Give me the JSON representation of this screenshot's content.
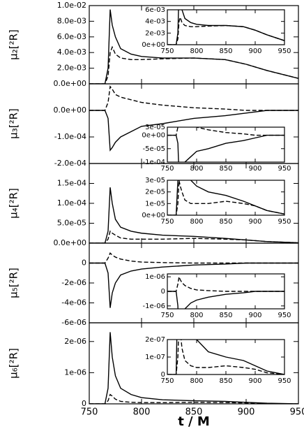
{
  "chart_data": [
    {
      "type": "line",
      "y_label": "μ₂[²R]",
      "x": [
        750,
        765,
        768,
        770,
        772,
        775,
        780,
        790,
        800,
        820,
        850,
        880,
        900,
        920,
        950
      ],
      "xlim": [
        750,
        950
      ],
      "xticks": [
        750,
        800,
        850,
        900,
        950
      ],
      "ylim": [
        0,
        0.01
      ],
      "yticks": [
        {
          "value": 0,
          "label": "0.0e+00"
        },
        {
          "value": 0.002,
          "label": "2.0e-03"
        },
        {
          "value": 0.004,
          "label": "4.0e-03"
        },
        {
          "value": 0.006,
          "label": "6.0e-03"
        },
        {
          "value": 0.008,
          "label": "8.0e-03"
        },
        {
          "value": 0.01,
          "label": "1.0e-02"
        }
      ],
      "series": [
        {
          "color": "#000000",
          "dashed": false,
          "values": [
            0,
            0,
            0.002,
            0.0095,
            0.0075,
            0.006,
            0.0045,
            0.0038,
            0.0035,
            0.0033,
            0.0033,
            0.0031,
            0.0025,
            0.0017,
            0.0007
          ]
        },
        {
          "color": "#000000",
          "dashed": true,
          "values": [
            0,
            0,
            0.001,
            0.004,
            0.0047,
            0.0038,
            0.0033,
            0.0031,
            0.0031,
            0.0032,
            0.0033,
            0.0031,
            0.0025,
            0.0017,
            0.0007
          ]
        }
      ],
      "inset": {
        "xlim": [
          750,
          950
        ],
        "xticks": [
          750,
          800,
          850,
          900,
          950
        ],
        "ylim": [
          0,
          0.006
        ],
        "yticks": [
          {
            "value": 0,
            "label": "0e+00"
          },
          {
            "value": 0.002,
            "label": "2e-03"
          },
          {
            "value": 0.004,
            "label": "4e-03"
          },
          {
            "value": 0.006,
            "label": "6e-03"
          }
        ]
      }
    },
    {
      "type": "line",
      "y_label": "μ₃[²R]",
      "x": [
        750,
        765,
        768,
        770,
        772,
        775,
        780,
        790,
        800,
        820,
        850,
        880,
        900,
        920,
        950
      ],
      "xlim": [
        750,
        950
      ],
      "xticks": [
        750,
        800,
        850,
        900,
        950
      ],
      "ylim": [
        -0.0002,
        0.0001
      ],
      "yticks": [
        {
          "value": -0.0002,
          "label": "-2.0e-04"
        },
        {
          "value": -0.0001,
          "label": "-1.0e-04"
        },
        {
          "value": 0,
          "label": "0.0e+00"
        }
      ],
      "series": [
        {
          "color": "#000000",
          "dashed": false,
          "values": [
            0,
            0,
            -3e-05,
            -0.00015,
            -0.00014,
            -0.00012,
            -0.0001,
            -8e-05,
            -6e-05,
            -5e-05,
            -3e-05,
            -2e-05,
            -1e-05,
            0,
            0
          ]
        },
        {
          "color": "#000000",
          "dashed": true,
          "values": [
            0,
            0,
            3e-05,
            9e-05,
            8e-05,
            6e-05,
            5e-05,
            4e-05,
            3e-05,
            2e-05,
            1e-05,
            5e-06,
            0,
            0,
            0
          ]
        }
      ],
      "inset": {
        "xlim": [
          750,
          950
        ],
        "xticks": [
          750,
          800,
          850,
          900,
          950
        ],
        "ylim": [
          -0.0001,
          3e-05
        ],
        "yticks": [
          {
            "value": -0.0001,
            "label": "-1e-04"
          },
          {
            "value": -5e-05,
            "label": "-5e-05"
          },
          {
            "value": 0,
            "label": "0e+00"
          },
          {
            "value": 3e-05,
            "label": "3e-05"
          }
        ]
      }
    },
    {
      "type": "line",
      "y_label": "μ₄[²R]",
      "x": [
        750,
        765,
        768,
        770,
        772,
        775,
        780,
        790,
        800,
        820,
        850,
        880,
        900,
        920,
        950
      ],
      "xlim": [
        750,
        950
      ],
      "xticks": [
        750,
        800,
        850,
        900,
        950
      ],
      "ylim": [
        0,
        0.0002
      ],
      "yticks": [
        {
          "value": 0,
          "label": "0.0e+00"
        },
        {
          "value": 5e-05,
          "label": "5.0e-05"
        },
        {
          "value": 0.0001,
          "label": "1.0e-04"
        },
        {
          "value": 0.00015,
          "label": "1.5e-04"
        }
      ],
      "series": [
        {
          "color": "#000000",
          "dashed": false,
          "values": [
            0,
            0,
            3e-05,
            0.00014,
            0.0001,
            6e-05,
            4e-05,
            3e-05,
            2.5e-05,
            2e-05,
            1.7e-05,
            1.2e-05,
            8e-06,
            4e-06,
            1e-06
          ]
        },
        {
          "color": "#000000",
          "dashed": true,
          "values": [
            0,
            0,
            1e-05,
            3e-05,
            2.5e-05,
            2e-05,
            1.3e-05,
            1e-05,
            1e-05,
            1e-05,
            1.2e-05,
            1e-05,
            8e-06,
            4e-06,
            1e-06
          ]
        }
      ],
      "inset": {
        "xlim": [
          750,
          950
        ],
        "xticks": [
          750,
          800,
          850,
          900,
          950
        ],
        "ylim": [
          0,
          3e-05
        ],
        "yticks": [
          {
            "value": 0,
            "label": "0e+00"
          },
          {
            "value": 1e-05,
            "label": "1e-05"
          },
          {
            "value": 2e-05,
            "label": "2e-05"
          },
          {
            "value": 3e-05,
            "label": "3e-05"
          }
        ]
      }
    },
    {
      "type": "line",
      "y_label": "μ₅[²R]",
      "x": [
        750,
        765,
        768,
        770,
        772,
        775,
        780,
        790,
        800,
        820,
        850,
        880,
        900,
        920,
        950
      ],
      "xlim": [
        750,
        950
      ],
      "xticks": [
        750,
        800,
        850,
        900,
        950
      ],
      "ylim": [
        -6e-06,
        2e-06
      ],
      "yticks": [
        {
          "value": -6e-06,
          "label": "-6e-06"
        },
        {
          "value": -4e-06,
          "label": "-4e-06"
        },
        {
          "value": -2e-06,
          "label": "-2e-06"
        },
        0
      ],
      "series": [
        {
          "color": "#000000",
          "dashed": false,
          "values": [
            0,
            0,
            -1e-06,
            -4.5e-06,
            -3e-06,
            -2e-06,
            -1.2e-06,
            -8e-07,
            -6e-07,
            -4e-07,
            -2e-07,
            -1e-07,
            0,
            0,
            0
          ]
        },
        {
          "color": "#000000",
          "dashed": true,
          "values": [
            0,
            0,
            5e-07,
            1e-06,
            8e-07,
            6e-07,
            4e-07,
            2e-07,
            1e-07,
            5e-08,
            0,
            0,
            0,
            0,
            0
          ]
        }
      ],
      "inset": {
        "xlim": [
          750,
          950
        ],
        "xticks": [
          750,
          800,
          850,
          900,
          950
        ],
        "ylim": [
          -1.2e-06,
          1.2e-06
        ],
        "yticks": [
          {
            "value": -1e-06,
            "label": "-1e-06"
          },
          0,
          {
            "value": 1e-06,
            "label": "1e-06"
          }
        ]
      }
    },
    {
      "type": "line",
      "y_label": "μ₆[²R]",
      "x_label": "t / M",
      "x": [
        750,
        765,
        768,
        770,
        772,
        775,
        780,
        790,
        800,
        820,
        850,
        880,
        900,
        920,
        950
      ],
      "xlim": [
        750,
        950
      ],
      "xticks": [
        750,
        800,
        850,
        900,
        950
      ],
      "ylim": [
        0,
        2.6e-06
      ],
      "yticks": [
        0,
        {
          "value": 1e-06,
          "label": "1e-06"
        },
        {
          "value": 2e-06,
          "label": "2e-06"
        }
      ],
      "series": [
        {
          "color": "#000000",
          "dashed": false,
          "values": [
            0,
            0,
            5e-07,
            2.3e-06,
            1.5e-06,
            9e-07,
            5e-07,
            3e-07,
            2e-07,
            1.3e-07,
            1e-07,
            8e-08,
            5e-08,
            2e-08,
            0
          ]
        },
        {
          "color": "#000000",
          "dashed": true,
          "values": [
            0,
            0,
            1e-07,
            3e-07,
            2.5e-07,
            1.5e-07,
            8e-08,
            5e-08,
            4e-08,
            4e-08,
            5e-08,
            4e-08,
            3e-08,
            1e-08,
            0
          ]
        }
      ],
      "inset": {
        "xlim": [
          750,
          950
        ],
        "xticks": [
          750,
          800,
          850,
          900,
          950
        ],
        "ylim": [
          0,
          2e-07
        ],
        "yticks": [
          0,
          {
            "value": 1e-07,
            "label": "1e-07"
          },
          {
            "value": 2e-07,
            "label": "2e-07"
          }
        ]
      }
    }
  ]
}
